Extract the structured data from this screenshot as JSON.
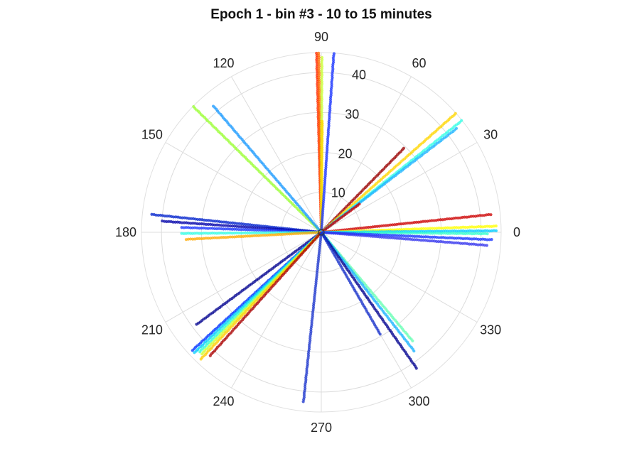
{
  "chart_data": {
    "type": "scatter",
    "subtype": "polar",
    "title": "Epoch 1 - bin #3 - 10 to 15 minutes",
    "theta_unit": "degrees",
    "theta_ticks": [
      "0",
      "30",
      "60",
      "90",
      "120",
      "150",
      "180",
      "210",
      "240",
      "270",
      "300",
      "330"
    ],
    "r_ticks": [
      "10",
      "20",
      "30",
      "40"
    ],
    "r_tick_angle_deg": 80,
    "rlim": [
      0,
      45
    ],
    "grid": true,
    "colormap": "jet",
    "series": [
      {
        "theta": 91.5,
        "r_max": 45,
        "color": "#ff2a00"
      },
      {
        "theta": 90.8,
        "r_max": 45,
        "color": "#ff6a00"
      },
      {
        "theta": 89.8,
        "r_max": 44,
        "color": "#ccff33"
      },
      {
        "theta": 89.5,
        "r_max": 28,
        "color": "#ffd500"
      },
      {
        "theta": 86.0,
        "r_max": 45,
        "color": "#1833ff"
      },
      {
        "theta": 45.5,
        "r_max": 30,
        "color": "#990000"
      },
      {
        "theta": 41.5,
        "r_max": 45,
        "color": "#ffd500"
      },
      {
        "theta": 38.5,
        "r_max": 45,
        "color": "#33ffe6"
      },
      {
        "theta": 37.5,
        "r_max": 43,
        "color": "#1ab3ff"
      },
      {
        "theta": 36.5,
        "r_max": 12,
        "color": "#cc0000"
      },
      {
        "theta": 6.0,
        "r_max": 43,
        "color": "#cc0000"
      },
      {
        "theta": 2.0,
        "r_max": 44,
        "color": "#ffff00"
      },
      {
        "theta": 0.5,
        "r_max": 44,
        "color": "#00ccff"
      },
      {
        "theta": -0.5,
        "r_max": 42,
        "color": "#33ffcc"
      },
      {
        "theta": -2.5,
        "r_max": 43,
        "color": "#1a33ff"
      },
      {
        "theta": -4.5,
        "r_max": 42,
        "color": "#3333ee"
      },
      {
        "theta": 135.5,
        "r_max": 45,
        "color": "#99ff33"
      },
      {
        "theta": 130.5,
        "r_max": 42,
        "color": "#1a99ff"
      },
      {
        "theta": 174.0,
        "r_max": 43,
        "color": "#0022cc"
      },
      {
        "theta": 176.0,
        "r_max": 40,
        "color": "#0000aa"
      },
      {
        "theta": 178.0,
        "r_max": 35,
        "color": "#1a33ff"
      },
      {
        "theta": 180.5,
        "r_max": 35,
        "color": "#33ffe6"
      },
      {
        "theta": 183.0,
        "r_max": 34,
        "color": "#ffaa00"
      },
      {
        "theta": 216.5,
        "r_max": 39,
        "color": "#00008f"
      },
      {
        "theta": 222.5,
        "r_max": 44,
        "color": "#0033ff"
      },
      {
        "theta": 223.5,
        "r_max": 44,
        "color": "#00ccff"
      },
      {
        "theta": 224.5,
        "r_max": 43,
        "color": "#33ffcc"
      },
      {
        "theta": 225.5,
        "r_max": 43,
        "color": "#ccff33"
      },
      {
        "theta": 226.5,
        "r_max": 44,
        "color": "#ffcc00"
      },
      {
        "theta": 228.0,
        "r_max": 42,
        "color": "#aa0000"
      },
      {
        "theta": 264.0,
        "r_max": 43,
        "color": "#1a33cc"
      },
      {
        "theta": 310.0,
        "r_max": 36,
        "color": "#66ffb3"
      },
      {
        "theta": 308.0,
        "r_max": 38,
        "color": "#1ab3ff"
      },
      {
        "theta": 305.0,
        "r_max": 42,
        "color": "#00008f"
      },
      {
        "theta": 300.0,
        "r_max": 30,
        "color": "#1a33cc"
      }
    ]
  }
}
